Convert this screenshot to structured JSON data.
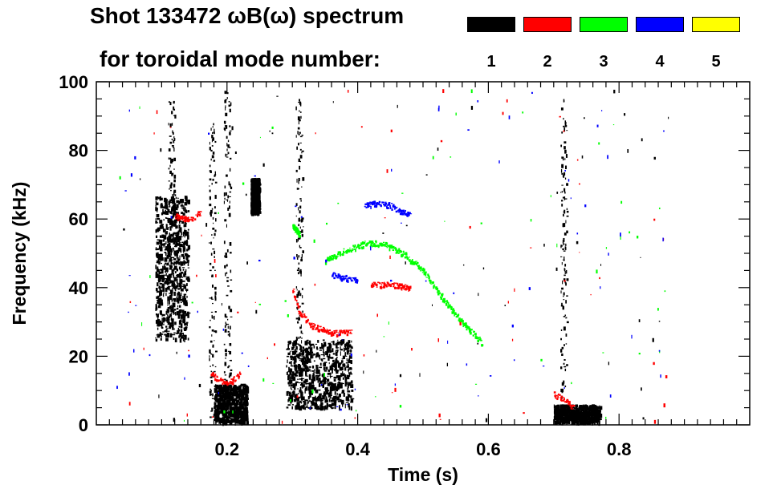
{
  "title": {
    "line1": "Shot 133472 ωB(ω) spectrum",
    "line2": "for toroidal mode number:"
  },
  "legend": [
    {
      "label": "1",
      "color": "#000000"
    },
    {
      "label": "2",
      "color": "#ff0000"
    },
    {
      "label": "3",
      "color": "#00ff00"
    },
    {
      "label": "4",
      "color": "#0000ff"
    },
    {
      "label": "5",
      "color": "#ffff00"
    }
  ],
  "chart_data": {
    "type": "scatter",
    "xlabel": "Time (s)",
    "ylabel": "Frequency (kHz)",
    "xlim": [
      0.0,
      1.0
    ],
    "ylim": [
      0,
      100
    ],
    "xticks": [
      0.2,
      0.4,
      0.6,
      0.8
    ],
    "xtick_labels": [
      "0.2",
      "0.4",
      "0.6",
      "0.8"
    ],
    "yticks": [
      0,
      20,
      40,
      60,
      80,
      100
    ],
    "ytick_labels": [
      "0",
      "20",
      "40",
      "60",
      "80",
      "100"
    ],
    "series": [
      {
        "name": "1",
        "color": "#000000",
        "regions": [
          {
            "t": [
              0.09,
              0.14
            ],
            "f": [
              25,
              67
            ]
          },
          {
            "t": [
              0.18,
              0.23
            ],
            "f": [
              1,
              12
            ]
          },
          {
            "t": [
              0.29,
              0.39
            ],
            "f": [
              5,
              25
            ]
          },
          {
            "t": [
              0.236,
              0.248
            ],
            "f": [
              62,
              72
            ]
          },
          {
            "t": [
              0.7,
              0.77
            ],
            "f": [
              1,
              6
            ]
          }
        ],
        "streaks": [
          {
            "t": 0.115,
            "f": [
              30,
              95
            ]
          },
          {
            "t": 0.2,
            "f": [
              3,
              98
            ]
          },
          {
            "t": 0.177,
            "f": [
              2,
              88
            ]
          },
          {
            "t": 0.31,
            "f": [
              10,
              95
            ]
          },
          {
            "t": 0.715,
            "f": [
              5,
              95
            ]
          }
        ]
      },
      {
        "name": "2",
        "color": "#ff0000",
        "curves": [
          {
            "t": [
              0.12,
              0.14,
              0.16
            ],
            "f": [
              61,
              60,
              62
            ]
          },
          {
            "t": [
              0.175,
              0.2,
              0.22
            ],
            "f": [
              15,
              12,
              15
            ]
          },
          {
            "t": [
              0.3,
              0.31,
              0.33,
              0.36,
              0.39
            ],
            "f": [
              40,
              33,
              29,
              27,
              27
            ]
          },
          {
            "t": [
              0.42,
              0.45,
              0.48
            ],
            "f": [
              41,
              41,
              40
            ]
          },
          {
            "t": [
              0.7,
              0.72,
              0.73
            ],
            "f": [
              9,
              7,
              5
            ]
          }
        ]
      },
      {
        "name": "3",
        "color": "#00ff00",
        "curves": [
          {
            "t": [
              0.35,
              0.38,
              0.41,
              0.44,
              0.47,
              0.5,
              0.53,
              0.56,
              0.59
            ],
            "f": [
              48,
              51,
              53,
              53,
              50,
              45,
              37,
              30,
              24
            ]
          },
          {
            "t": [
              0.3,
              0.31
            ],
            "f": [
              58,
              56
            ]
          }
        ]
      },
      {
        "name": "4",
        "color": "#0000ff",
        "curves": [
          {
            "t": [
              0.41,
              0.43,
              0.45,
              0.47,
              0.48
            ],
            "f": [
              64,
              65,
              64,
              62,
              62
            ]
          },
          {
            "t": [
              0.36,
              0.38,
              0.4
            ],
            "f": [
              44,
              43,
              42
            ]
          }
        ]
      },
      {
        "name": "5",
        "color": "#ffff00",
        "curves": []
      }
    ]
  }
}
